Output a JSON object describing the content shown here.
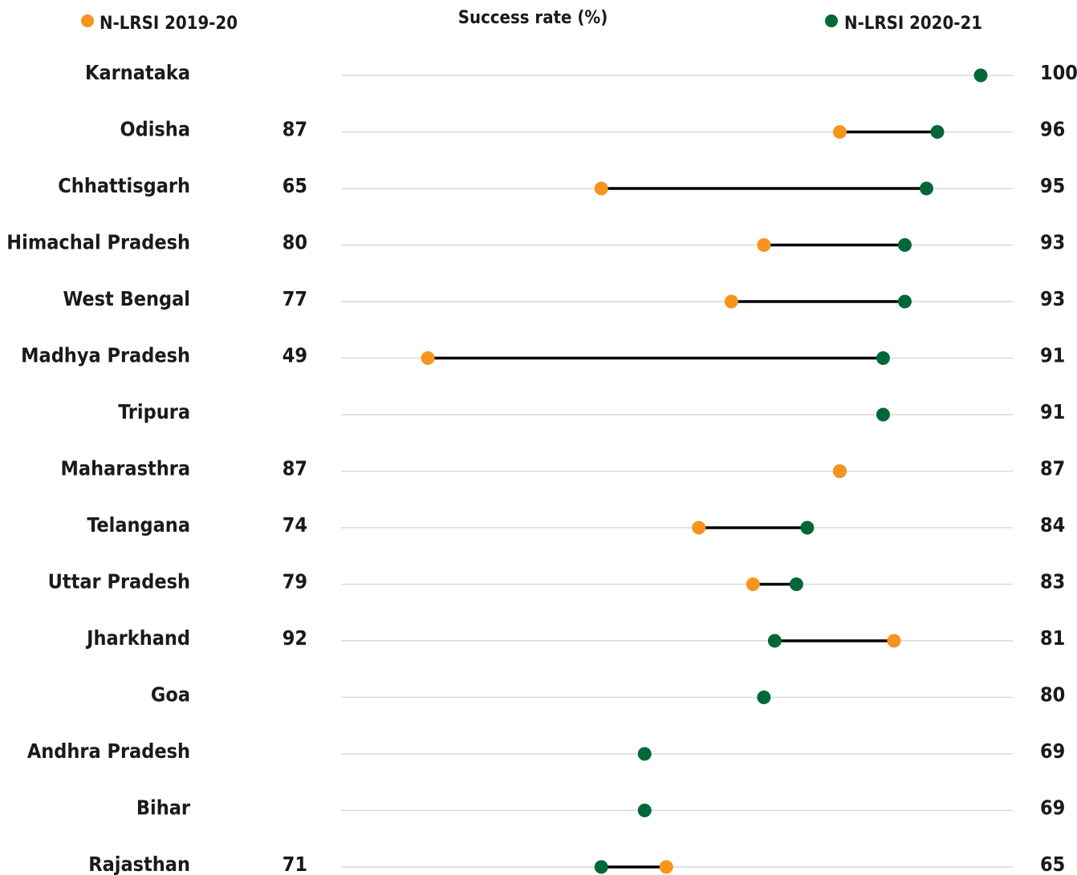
{
  "chart_data": {
    "type": "dumbbell",
    "title": "Success rate (%)",
    "legend": {
      "placement": "top",
      "entries": [
        {
          "name": "N-LRSI 2019-20",
          "color": "#f7941d"
        },
        {
          "name": "N-LRSI 2020-21",
          "color": "#006837"
        }
      ]
    },
    "colors": {
      "series_2019": "#f7941d",
      "series_2020": "#006837",
      "connector": "#000000",
      "grid": "#d9d9d9"
    },
    "xlim": [
      41,
      100
    ],
    "categories": [
      "Karnataka",
      "Odisha",
      "Chhattisgarh",
      "Himachal Pradesh",
      "West Bengal",
      "Madhya Pradesh",
      "Tripura",
      "Maharasthra",
      "Telangana",
      "Uttar Pradesh",
      "Jharkhand",
      "Goa",
      "Andhra Pradesh",
      "Bihar",
      "Rajasthan"
    ],
    "series": [
      {
        "name": "N-LRSI 2019-20",
        "values": [
          null,
          87,
          65,
          80,
          77,
          49,
          null,
          87,
          74,
          79,
          92,
          null,
          null,
          null,
          71
        ]
      },
      {
        "name": "N-LRSI 2020-21",
        "values": [
          100,
          96,
          95,
          93,
          93,
          91,
          91,
          87,
          84,
          83,
          81,
          80,
          69,
          69,
          65
        ]
      }
    ]
  }
}
